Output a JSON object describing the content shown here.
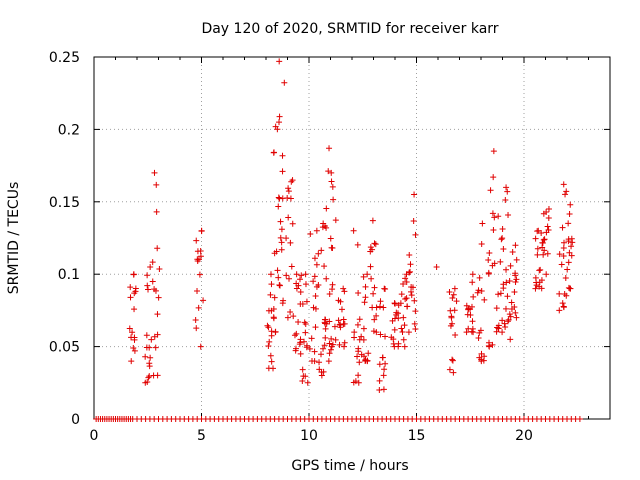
{
  "chart_data": {
    "type": "scatter",
    "title": "Day 120 of 2020, SRMTID for receiver karr",
    "xlabel": "GPS time / hours",
    "ylabel": "SRMTID / TECUs",
    "xlim": [
      0,
      24
    ],
    "ylim": [
      0,
      0.25
    ],
    "x_ticks": [
      0,
      5,
      10,
      15,
      20
    ],
    "y_ticks": [
      0,
      0.05,
      0.1,
      0.15,
      0.2,
      0.25
    ],
    "y_tick_labels": [
      "0",
      "0.05",
      "0.1",
      "0.15",
      "0.2",
      "0.25"
    ],
    "grid": true,
    "marker": "+",
    "color": "#e00000",
    "clusters": [
      {
        "x": 1.8,
        "y_min": 0.04,
        "y_max": 0.1
      },
      {
        "x": 2.5,
        "y_min": 0.025,
        "y_max": 0.105
      },
      {
        "x": 2.9,
        "y_min": 0.03,
        "y_max": 0.17
      },
      {
        "x": 4.9,
        "y_min": 0.05,
        "y_max": 0.13
      },
      {
        "x": 8.2,
        "y_min": 0.035,
        "y_max": 0.1
      },
      {
        "x": 8.5,
        "y_min": 0.06,
        "y_max": 0.205
      },
      {
        "x": 8.7,
        "y_min": 0.08,
        "y_max": 0.247
      },
      {
        "x": 9.1,
        "y_min": 0.07,
        "y_max": 0.165
      },
      {
        "x": 9.5,
        "y_min": 0.045,
        "y_max": 0.1
      },
      {
        "x": 9.8,
        "y_min": 0.025,
        "y_max": 0.1
      },
      {
        "x": 10.2,
        "y_min": 0.04,
        "y_max": 0.13
      },
      {
        "x": 10.6,
        "y_min": 0.03,
        "y_max": 0.135
      },
      {
        "x": 10.9,
        "y_min": 0.04,
        "y_max": 0.187
      },
      {
        "x": 11.1,
        "y_min": 0.05,
        "y_max": 0.17
      },
      {
        "x": 11.5,
        "y_min": 0.05,
        "y_max": 0.09
      },
      {
        "x": 12.2,
        "y_min": 0.025,
        "y_max": 0.13
      },
      {
        "x": 12.6,
        "y_min": 0.04,
        "y_max": 0.1
      },
      {
        "x": 13.0,
        "y_min": 0.06,
        "y_max": 0.137
      },
      {
        "x": 13.4,
        "y_min": 0.02,
        "y_max": 0.09
      },
      {
        "x": 14.0,
        "y_min": 0.05,
        "y_max": 0.08
      },
      {
        "x": 14.4,
        "y_min": 0.05,
        "y_max": 0.1
      },
      {
        "x": 14.8,
        "y_min": 0.06,
        "y_max": 0.155
      },
      {
        "x": 15.8,
        "y_min": 0.105,
        "y_max": 0.105
      },
      {
        "x": 16.7,
        "y_min": 0.032,
        "y_max": 0.09
      },
      {
        "x": 17.5,
        "y_min": 0.06,
        "y_max": 0.1
      },
      {
        "x": 18.0,
        "y_min": 0.04,
        "y_max": 0.135
      },
      {
        "x": 18.5,
        "y_min": 0.05,
        "y_max": 0.185
      },
      {
        "x": 18.9,
        "y_min": 0.06,
        "y_max": 0.14
      },
      {
        "x": 19.2,
        "y_min": 0.055,
        "y_max": 0.16
      },
      {
        "x": 19.5,
        "y_min": 0.07,
        "y_max": 0.12
      },
      {
        "x": 20.7,
        "y_min": 0.09,
        "y_max": 0.13
      },
      {
        "x": 21.0,
        "y_min": 0.1,
        "y_max": 0.145
      },
      {
        "x": 21.8,
        "y_min": 0.075,
        "y_max": 0.162
      },
      {
        "x": 22.1,
        "y_min": 0.09,
        "y_max": 0.148
      }
    ],
    "zero_points_x": [
      0.1,
      0.2,
      0.3,
      0.4,
      0.5,
      0.6,
      0.7,
      0.8,
      0.9,
      1.0,
      1.1,
      1.2,
      1.3,
      1.4,
      1.5,
      1.6,
      1.7,
      1.8,
      2.0,
      2.2,
      2.4,
      2.6,
      2.8,
      3.0,
      3.2,
      3.4,
      3.6,
      3.8,
      4.0,
      4.2,
      4.4,
      4.6,
      4.8,
      5.0,
      5.2,
      5.4,
      5.6,
      5.8,
      6.0,
      6.2,
      6.4,
      6.6,
      6.8,
      7.0,
      7.2,
      7.4,
      7.6,
      7.8,
      8.0,
      8.2,
      8.4,
      8.6,
      8.8,
      9.0,
      9.2,
      9.4,
      9.6,
      9.8,
      10.0,
      10.2,
      10.4,
      10.6,
      10.8,
      11.0,
      11.2,
      11.4,
      11.6,
      11.8,
      12.0,
      12.2,
      12.4,
      12.6,
      12.8,
      13.0,
      13.2,
      13.4,
      13.6,
      13.8,
      14.0,
      14.2,
      14.4,
      14.6,
      14.8,
      15.0,
      15.2,
      15.4,
      15.6,
      15.8,
      16.0,
      16.2,
      16.4,
      16.6,
      16.8,
      17.0,
      17.2,
      17.4,
      17.6,
      17.8,
      18.0,
      18.2,
      18.4,
      18.6,
      18.8,
      19.0,
      19.2,
      19.4,
      19.6,
      19.8,
      20.0,
      20.2,
      20.4,
      20.6,
      20.8,
      21.0,
      21.2,
      21.4,
      21.6,
      21.8,
      22.0,
      22.2,
      22.4,
      22.6
    ]
  }
}
